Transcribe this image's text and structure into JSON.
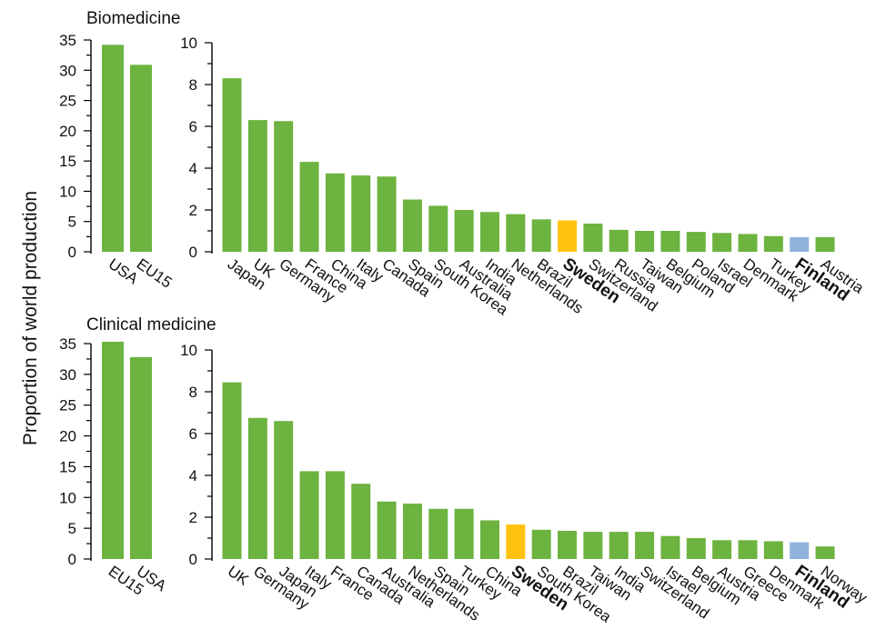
{
  "ylabel": "Proportion of world production",
  "colors": {
    "default": "#6cb33f",
    "sweden": "#ffc20e",
    "finland": "#8fb3dc"
  },
  "chart_data": [
    {
      "type": "bar",
      "title": "Biomedicine",
      "ylabel": "Proportion of world production",
      "left": {
        "categories": [
          "USA",
          "EU15"
        ],
        "values": [
          34.2,
          30.9
        ],
        "ylim": [
          0,
          35
        ],
        "yticks": [
          0,
          5,
          10,
          15,
          20,
          25,
          30,
          35
        ]
      },
      "right": {
        "categories": [
          "Japan",
          "UK",
          "Germany",
          "France",
          "China",
          "Italy",
          "Canada",
          "Spain",
          "South Korea",
          "Australia",
          "India",
          "Netherlands",
          "Brazil",
          "Sweden",
          "Switzerland",
          "Russia",
          "Taiwan",
          "Belgium",
          "Poland",
          "Israel",
          "Denmark",
          "Turkey",
          "Finland",
          "Austria"
        ],
        "values": [
          8.3,
          6.3,
          6.25,
          4.3,
          3.75,
          3.65,
          3.6,
          2.5,
          2.2,
          2.0,
          1.9,
          1.8,
          1.55,
          1.5,
          1.35,
          1.05,
          1.0,
          1.0,
          0.95,
          0.9,
          0.85,
          0.75,
          0.7,
          0.7
        ],
        "highlight": {
          "Sweden": "sweden",
          "Finland": "finland"
        },
        "ylim": [
          0,
          10
        ],
        "yticks": [
          0,
          2,
          4,
          6,
          8,
          10
        ]
      }
    },
    {
      "type": "bar",
      "title": "Clinical medicine",
      "ylabel": "Proportion of world production",
      "left": {
        "categories": [
          "EU15",
          "USA"
        ],
        "values": [
          35.3,
          32.8
        ],
        "ylim": [
          0,
          35
        ],
        "yticks": [
          0,
          5,
          10,
          15,
          20,
          25,
          30,
          35
        ]
      },
      "right": {
        "categories": [
          "UK",
          "Germany",
          "Japan",
          "Italy",
          "France",
          "Canada",
          "Australia",
          "Netherlands",
          "Spain",
          "Turkey",
          "China",
          "Sweden",
          "South Korea",
          "Brazil",
          "Taiwan",
          "India",
          "Switzerland",
          "Israel",
          "Belgium",
          "Austria",
          "Greece",
          "Denmark",
          "Finland",
          "Norway"
        ],
        "values": [
          8.45,
          6.75,
          6.6,
          4.2,
          4.2,
          3.6,
          2.75,
          2.65,
          2.4,
          2.4,
          1.85,
          1.65,
          1.4,
          1.35,
          1.3,
          1.3,
          1.3,
          1.1,
          1.0,
          0.9,
          0.9,
          0.85,
          0.8,
          0.6
        ],
        "highlight": {
          "Sweden": "sweden",
          "Finland": "finland"
        },
        "ylim": [
          0,
          10
        ],
        "yticks": [
          0,
          2,
          4,
          6,
          8,
          10
        ]
      }
    }
  ]
}
